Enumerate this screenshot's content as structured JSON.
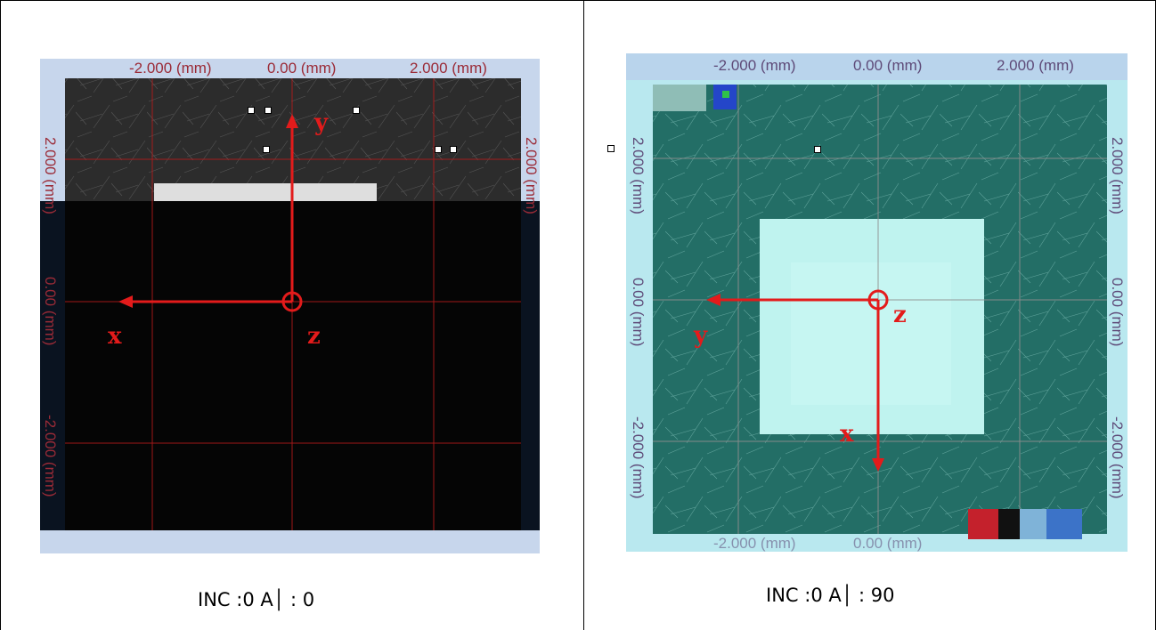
{
  "left_image": {
    "x_labels": [
      "-2.000 (mm)",
      "0.00 (mm)",
      "2.000 (mm)"
    ],
    "y_labels": [
      "2.000 (mm)",
      "0.00 (mm)",
      "-2.000 (mm)"
    ],
    "axis_labels": {
      "x": "x",
      "y": "y",
      "z": "z"
    },
    "caption": "INC :0 A│ : 0"
  },
  "right_image": {
    "x_labels": [
      "-2.000 (mm)",
      "0.00 (mm)",
      "2.000 (mm)"
    ],
    "y_labels": [
      "2.000 (mm)",
      "0.00 (mm)",
      "-2.000 (mm)"
    ],
    "bottom_labels": [
      "-2.000 (mm)",
      "0.00 (mm)"
    ],
    "axis_labels": {
      "x": "x",
      "y": "y",
      "z": "z"
    },
    "caption": "INC :0 A│ : 90"
  },
  "colors": {
    "axis_arrow": "#e31b1b",
    "left_sample": "#0a0a0a",
    "right_sample": "#1f6b63",
    "right_square": "#bff3ef"
  }
}
